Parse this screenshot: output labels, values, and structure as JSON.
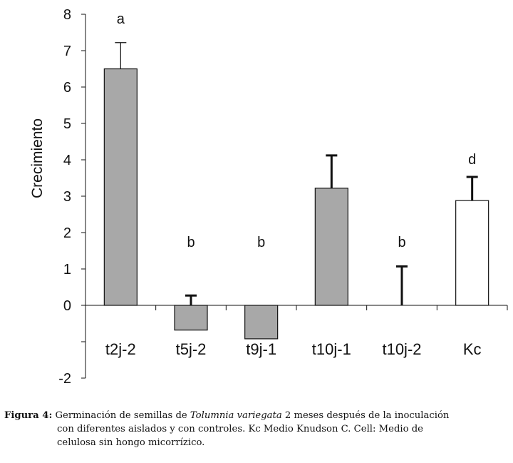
{
  "chart_data": {
    "type": "bar",
    "ylabel": "Crecimiento",
    "y_ticks": [
      "8",
      "7",
      "6",
      "5",
      "4",
      "3",
      "2",
      "1",
      "0",
      "",
      "-2"
    ],
    "ylim": [
      -2,
      8
    ],
    "categories": [
      "t2j-2",
      "t5j-2",
      "t9j-1",
      "t10j-1",
      "t10j-2",
      "Kc"
    ],
    "values": [
      6.5,
      -0.68,
      -0.92,
      3.22,
      0,
      2.88
    ],
    "error_upper": [
      7.22,
      0.27,
      0.0,
      4.12,
      1.07,
      3.53
    ],
    "significance_labels": [
      "a",
      "b",
      "b",
      "",
      "b",
      "d"
    ],
    "bar_colors": [
      "#a8a8a8",
      "#a8a8a8",
      "#a8a8a8",
      "#a8a8a8",
      "#a8a8a8",
      "#ffffff"
    ],
    "grid": false
  },
  "caption": {
    "label": "Figura 4:",
    "text_1": "Germinación de semillas de ",
    "species": "Tolumnia variegata",
    "text_2": " 2 meses después de la inoculación",
    "line_2": "con diferentes aislados y con controles.  Kc Medio Knudson C.  Cell: Medio de",
    "line_3": "celulosa sin hongo micorrízico."
  }
}
